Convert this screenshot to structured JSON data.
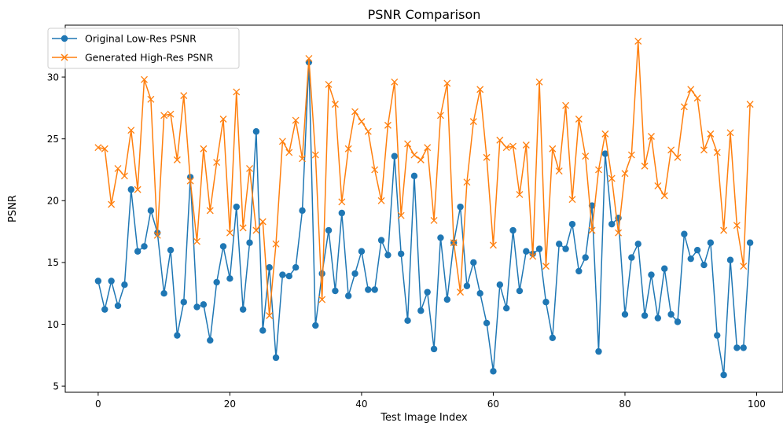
{
  "chart_data": {
    "type": "line",
    "title": "PSNR Comparison",
    "xlabel": "Test Image Index",
    "ylabel": "PSNR",
    "xlim": [
      -5,
      104
    ],
    "ylim": [
      4.5,
      34.2
    ],
    "xticks": [
      0,
      20,
      40,
      60,
      80,
      100
    ],
    "yticks": [
      5,
      10,
      15,
      20,
      25,
      30
    ],
    "grid": false,
    "legend_position": "top-left",
    "x": [
      0,
      1,
      2,
      3,
      4,
      5,
      6,
      7,
      8,
      9,
      10,
      11,
      12,
      13,
      14,
      15,
      16,
      17,
      18,
      19,
      20,
      21,
      22,
      23,
      24,
      25,
      26,
      27,
      28,
      29,
      30,
      31,
      32,
      33,
      34,
      35,
      36,
      37,
      38,
      39,
      40,
      41,
      42,
      43,
      44,
      45,
      46,
      47,
      48,
      49,
      50,
      51,
      52,
      53,
      54,
      55,
      56,
      57,
      58,
      59,
      60,
      61,
      62,
      63,
      64,
      65,
      66,
      67,
      68,
      69,
      70,
      71,
      72,
      73,
      74,
      75,
      76,
      77,
      78,
      79,
      80,
      81,
      82,
      83,
      84,
      85,
      86,
      87,
      88,
      89,
      90,
      91,
      92,
      93,
      94,
      95,
      96,
      97,
      98,
      99
    ],
    "series": [
      {
        "name": "Original Low-Res PSNR",
        "color": "#1f77b4",
        "marker": "circle",
        "values": [
          13.5,
          11.2,
          13.5,
          11.5,
          13.2,
          20.9,
          15.9,
          16.3,
          19.2,
          17.4,
          12.5,
          16.0,
          9.1,
          11.8,
          21.9,
          11.4,
          11.6,
          8.7,
          13.4,
          16.3,
          13.7,
          19.5,
          11.2,
          16.6,
          25.6,
          9.5,
          14.6,
          7.3,
          14.0,
          13.9,
          14.6,
          19.2,
          31.2,
          9.9,
          14.1,
          17.6,
          12.7,
          19.0,
          12.3,
          14.1,
          15.9,
          12.8,
          12.8,
          16.8,
          15.6,
          23.6,
          15.7,
          10.3,
          22.0,
          11.1,
          12.6,
          8.0,
          17.0,
          12.0,
          16.6,
          19.5,
          13.1,
          15.0,
          12.5,
          10.1,
          6.2,
          13.2,
          11.3,
          17.6,
          12.7,
          15.9,
          15.7,
          16.1,
          11.8,
          8.9,
          16.5,
          16.1,
          18.1,
          14.3,
          15.4,
          19.6,
          7.8,
          23.8,
          18.1,
          18.6,
          10.8,
          15.4,
          16.5,
          10.7,
          14.0,
          10.5,
          14.5,
          10.8,
          10.2,
          17.3,
          15.3,
          16.0,
          14.8,
          16.6,
          9.1,
          5.9,
          15.2,
          8.1,
          8.1,
          16.6
        ]
      },
      {
        "name": "Generated High-Res PSNR",
        "color": "#ff7f0e",
        "marker": "x",
        "values": [
          24.3,
          24.2,
          19.7,
          22.6,
          22.0,
          25.7,
          20.9,
          29.8,
          28.2,
          17.2,
          26.9,
          27.0,
          23.3,
          28.5,
          21.6,
          16.7,
          24.2,
          19.2,
          23.1,
          26.6,
          17.4,
          28.8,
          17.8,
          22.6,
          17.6,
          18.3,
          10.7,
          16.5,
          24.8,
          23.9,
          26.5,
          23.4,
          31.5,
          23.7,
          12.0,
          29.4,
          27.8,
          19.9,
          24.2,
          27.2,
          26.4,
          25.6,
          22.5,
          20.0,
          26.1,
          29.6,
          18.8,
          24.6,
          23.7,
          23.3,
          24.3,
          18.4,
          26.9,
          29.5,
          16.6,
          12.6,
          21.5,
          26.4,
          29.0,
          23.5,
          16.4,
          24.9,
          24.3,
          24.4,
          20.5,
          24.5,
          15.5,
          29.6,
          14.7,
          24.2,
          22.4,
          27.7,
          20.1,
          26.6,
          23.6,
          17.6,
          22.5,
          25.4,
          21.8,
          17.4,
          22.2,
          23.7,
          32.9,
          22.8,
          25.2,
          21.2,
          20.4,
          24.1,
          23.5,
          27.6,
          29.0,
          28.3,
          24.1,
          25.4,
          23.9,
          17.6,
          25.5,
          18.0,
          14.7,
          27.8
        ]
      }
    ]
  }
}
